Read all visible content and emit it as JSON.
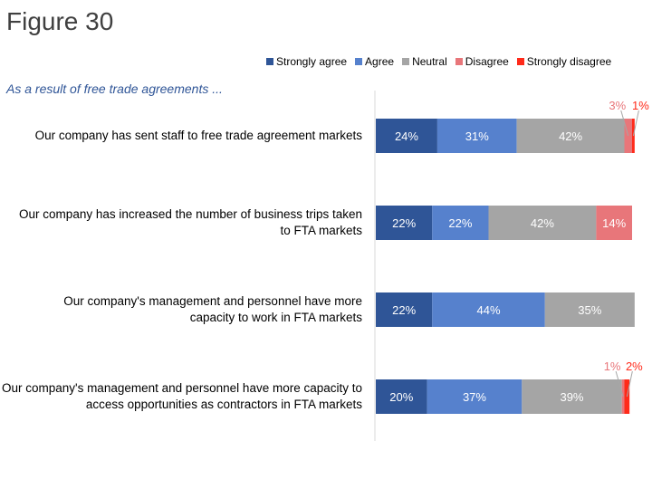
{
  "figure_title": "Figure 30",
  "chart_data": {
    "type": "bar",
    "orientation": "horizontal",
    "stacked": true,
    "subtitle": "As a result of free trade agreements ...",
    "categories": [
      "Our company has sent staff to free trade agreement markets",
      "Our company has increased the number of business trips taken to FTA markets",
      "Our company's management and personnel have more capacity to work in FTA markets",
      "Our company's management and personnel have more capacity to access opportunities as contractors in FTA markets"
    ],
    "series": [
      {
        "name": "Strongly agree",
        "color": "#2F5597",
        "values": [
          24,
          22,
          22,
          20
        ]
      },
      {
        "name": "Agree",
        "color": "#5681CD",
        "values": [
          31,
          22,
          44,
          37
        ]
      },
      {
        "name": "Neutral",
        "color": "#A5A5A5",
        "values": [
          42,
          42,
          35,
          39
        ]
      },
      {
        "name": "Disagree",
        "color": "#E8767A",
        "values": [
          3,
          14,
          0,
          1
        ]
      },
      {
        "name": "Strongly disagree",
        "color": "#FF2A1A",
        "values": [
          1,
          0,
          0,
          2
        ]
      }
    ],
    "value_format": "{v}%",
    "legend": "top",
    "grid": false,
    "xlim": [
      0,
      100
    ]
  }
}
